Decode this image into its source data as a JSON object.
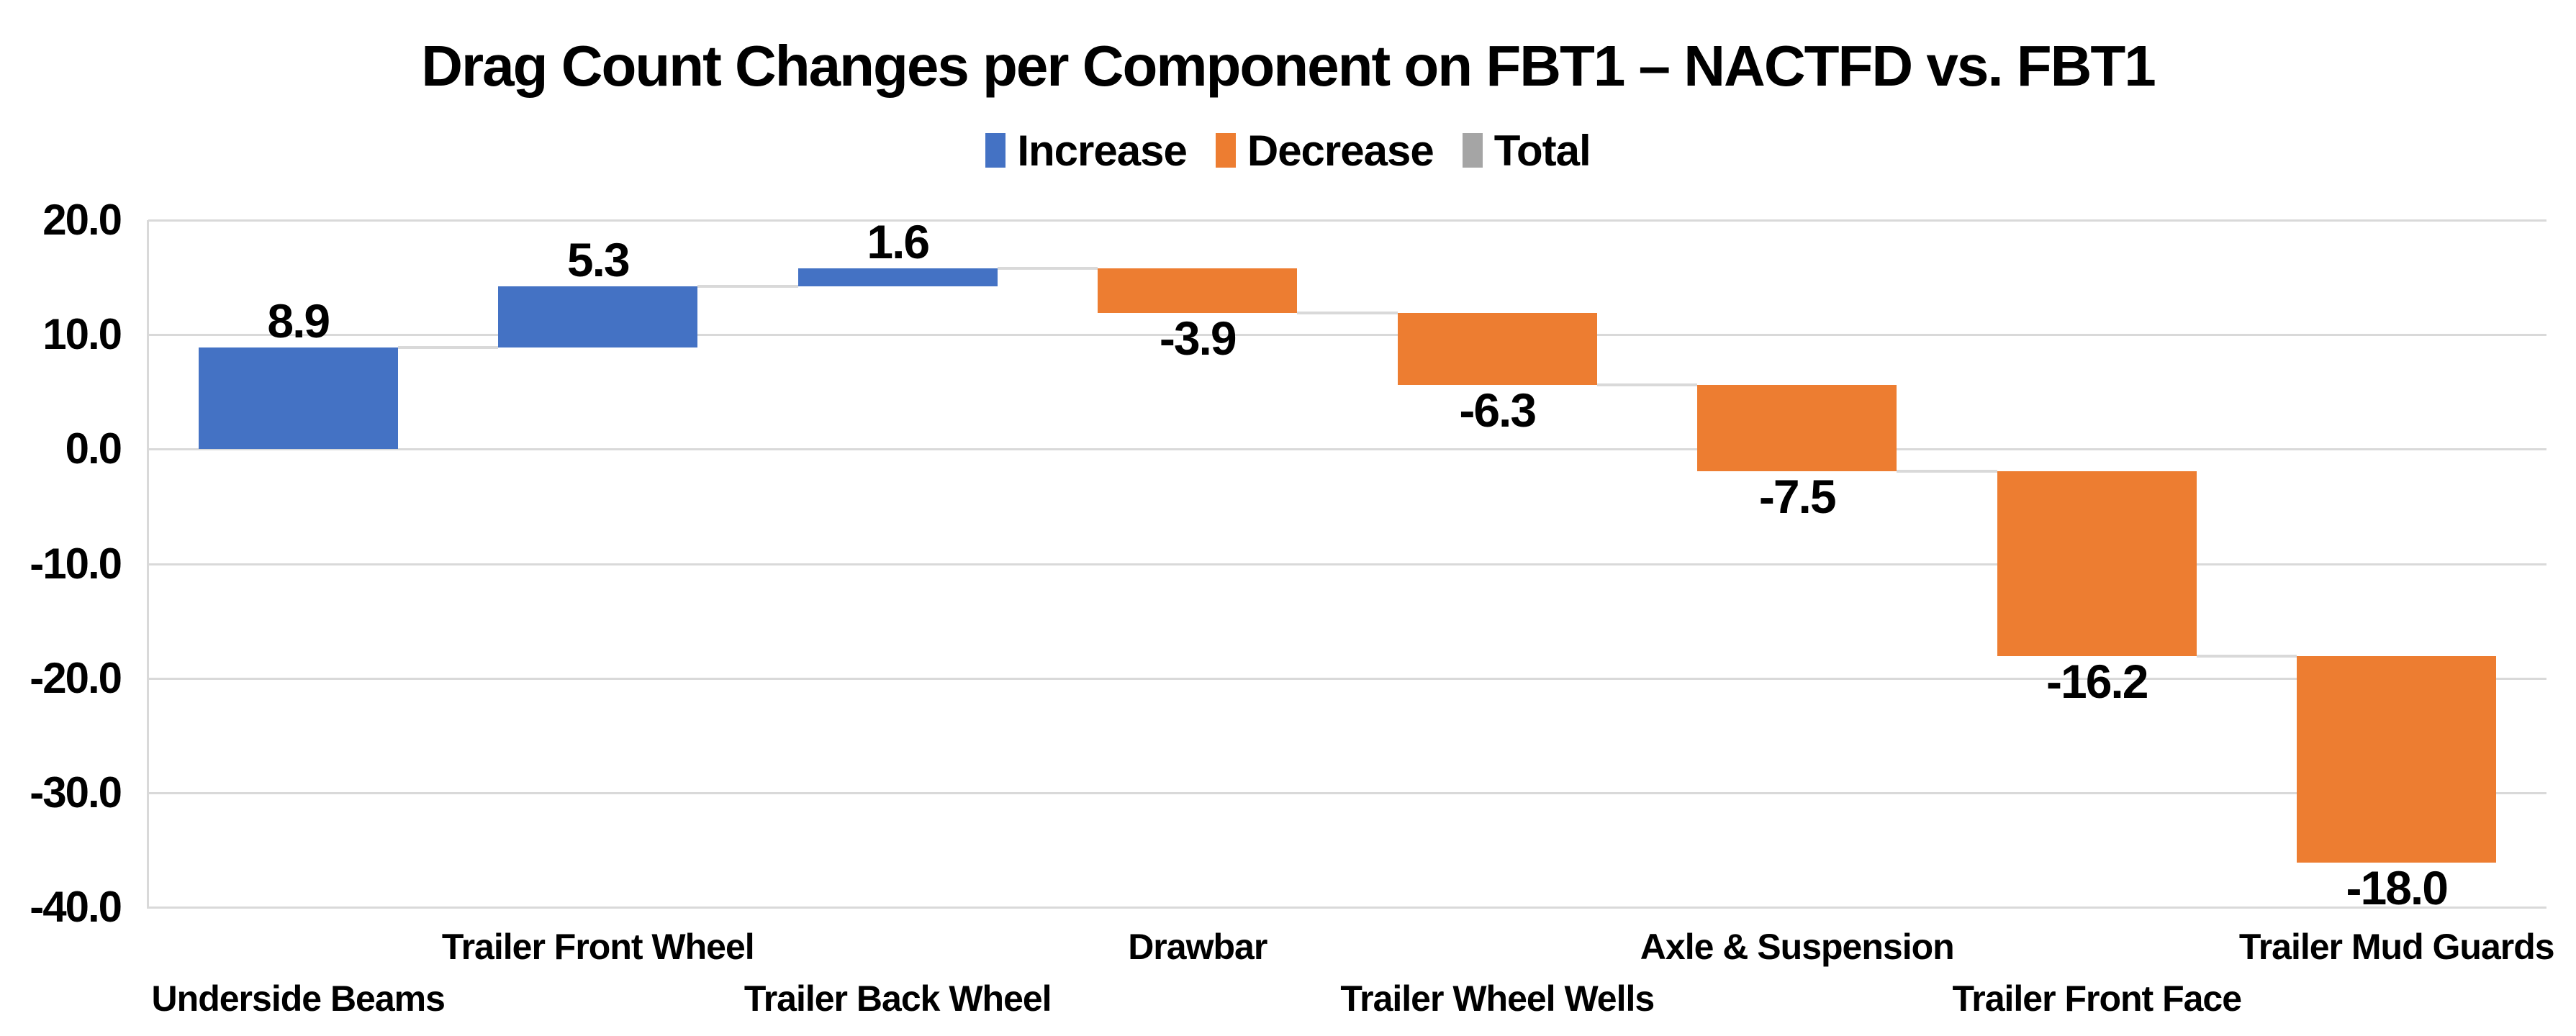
{
  "chart_title": "Drag Count Changes per Component on FBT1 – NACTFD vs. FBT1",
  "legend": {
    "items": [
      {
        "label": "Increase",
        "color": "#4472C4"
      },
      {
        "label": "Decrease",
        "color": "#ED7D31"
      },
      {
        "label": "Total",
        "color": "#A5A5A5"
      }
    ]
  },
  "chart_data": {
    "type": "bar",
    "subtype": "waterfall",
    "title": "Drag Count Changes per Component on FBT1 – NACTFD vs. FBT1",
    "categories": [
      "Underside Beams",
      "Trailer Front Wheel",
      "Trailer Back Wheel",
      "Drawbar",
      "Trailer Wheel Wells",
      "Axle & Suspension",
      "Trailer Front Face",
      "Trailer Mud Guards"
    ],
    "values": [
      8.9,
      5.3,
      1.6,
      -3.9,
      -6.3,
      -7.5,
      -16.2,
      -18.0
    ],
    "data_labels": [
      "8.9",
      "5.3",
      "1.6",
      "-3.9",
      "-6.3",
      "-7.5",
      "-16.2",
      "-18.0"
    ],
    "cumulative": [
      8.9,
      14.2,
      15.8,
      11.9,
      5.6,
      -1.9,
      -18.1,
      -36.1
    ],
    "xlabel": "",
    "ylabel": "",
    "ylim": [
      -40,
      20
    ],
    "ytick_step": 10,
    "ytick_labels": [
      "20.0",
      "10.0",
      "0.0",
      "-10.0",
      "-20.0",
      "-30.0",
      "-40.0"
    ],
    "grid": true,
    "legend_position": "top",
    "legend_entries": [
      "Increase",
      "Decrease",
      "Total"
    ],
    "increase_color": "#4472C4",
    "decrease_color": "#ED7D31",
    "total_color": "#A5A5A5",
    "gridline_color": "#D9D9D9",
    "connector_color": "#D9D9D9",
    "text_color": "#000000",
    "background_color": "#FFFFFF"
  }
}
